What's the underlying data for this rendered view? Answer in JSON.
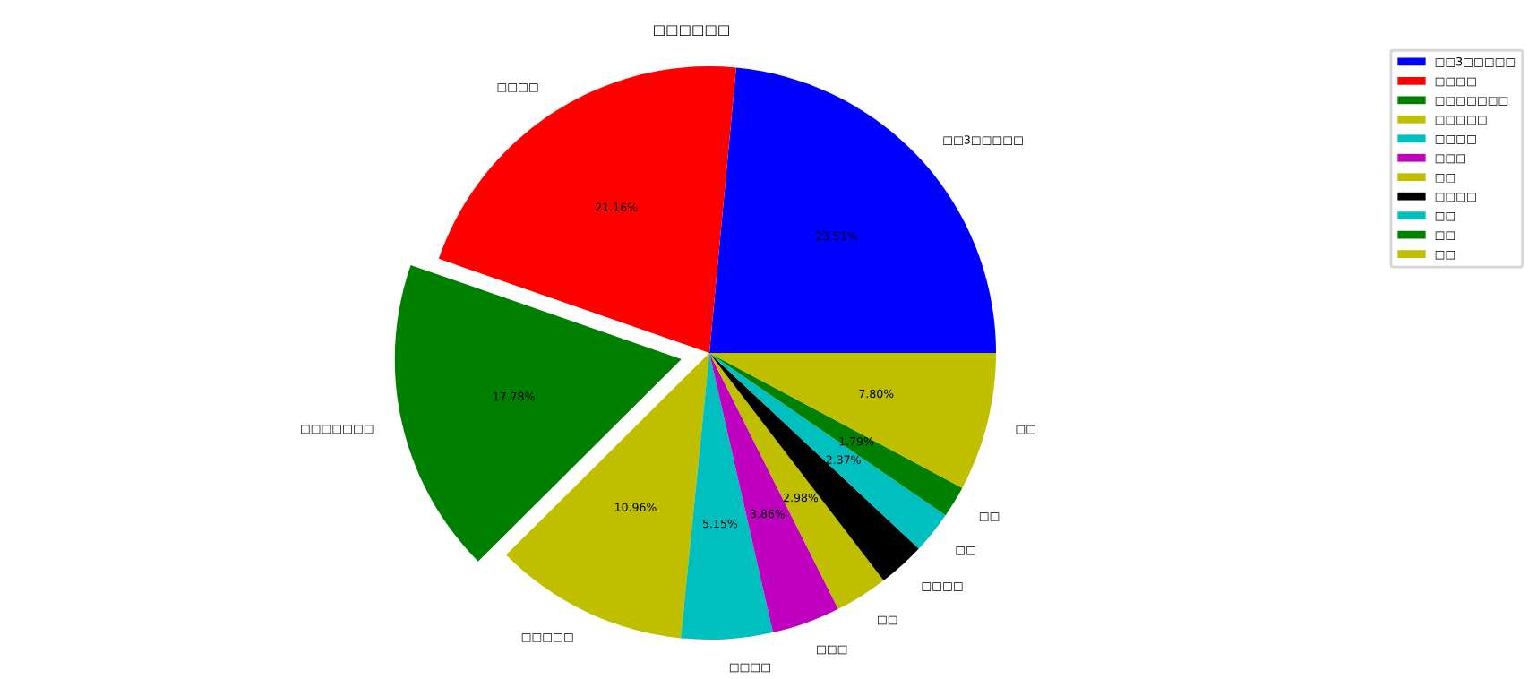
{
  "chart_data": {
    "type": "pie",
    "title": "□□□□□□",
    "categories": [
      "□□3□□□□□",
      "□□□□",
      "□□□□□□□",
      "□□□□□",
      "□□□□",
      "□□□",
      "□□",
      "□□□□",
      "□□",
      "□□",
      "□□"
    ],
    "values": [
      23.51,
      21.16,
      17.78,
      10.96,
      5.15,
      3.86,
      2.98,
      2.64,
      2.37,
      1.79,
      7.8
    ],
    "colors": [
      "#0000ff",
      "#ff0000",
      "#008000",
      "#bfbf00",
      "#00bfbf",
      "#bf00bf",
      "#bfbf00",
      "#000000",
      "#00bfbf",
      "#008000",
      "#bfbf00"
    ],
    "value_labels": [
      "23.51%",
      "21.16%",
      "17.78%",
      "10.96%",
      "5.15%",
      "3.86%",
      "2.98%",
      null,
      "2.37%",
      "1.79%",
      "7.80%"
    ],
    "legend": "top right"
  }
}
